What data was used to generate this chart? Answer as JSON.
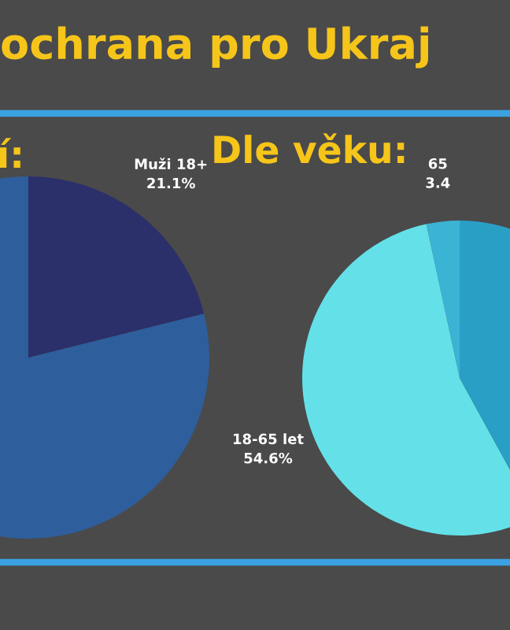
{
  "chart_data": [
    {
      "type": "pie",
      "title": "í:",
      "categories": [
        null,
        "Muži 18+"
      ],
      "values": [
        78.9,
        21.1
      ],
      "colors": [
        "#2e5e9c",
        "#2b2f6a"
      ],
      "value_labels": [
        null,
        "21.1%"
      ]
    },
    {
      "type": "pie",
      "title": "Dle věku:",
      "subtitle": "ochrana pro Ukraj",
      "categories": [
        "65",
        "18-65 let",
        null
      ],
      "values": [
        3.4,
        54.6,
        42.0
      ],
      "colors": [
        "#3bb3d5",
        "#64e1e8",
        "#2a9fc6"
      ],
      "value_labels": [
        "3.4",
        "54.6%",
        null
      ]
    }
  ]
}
